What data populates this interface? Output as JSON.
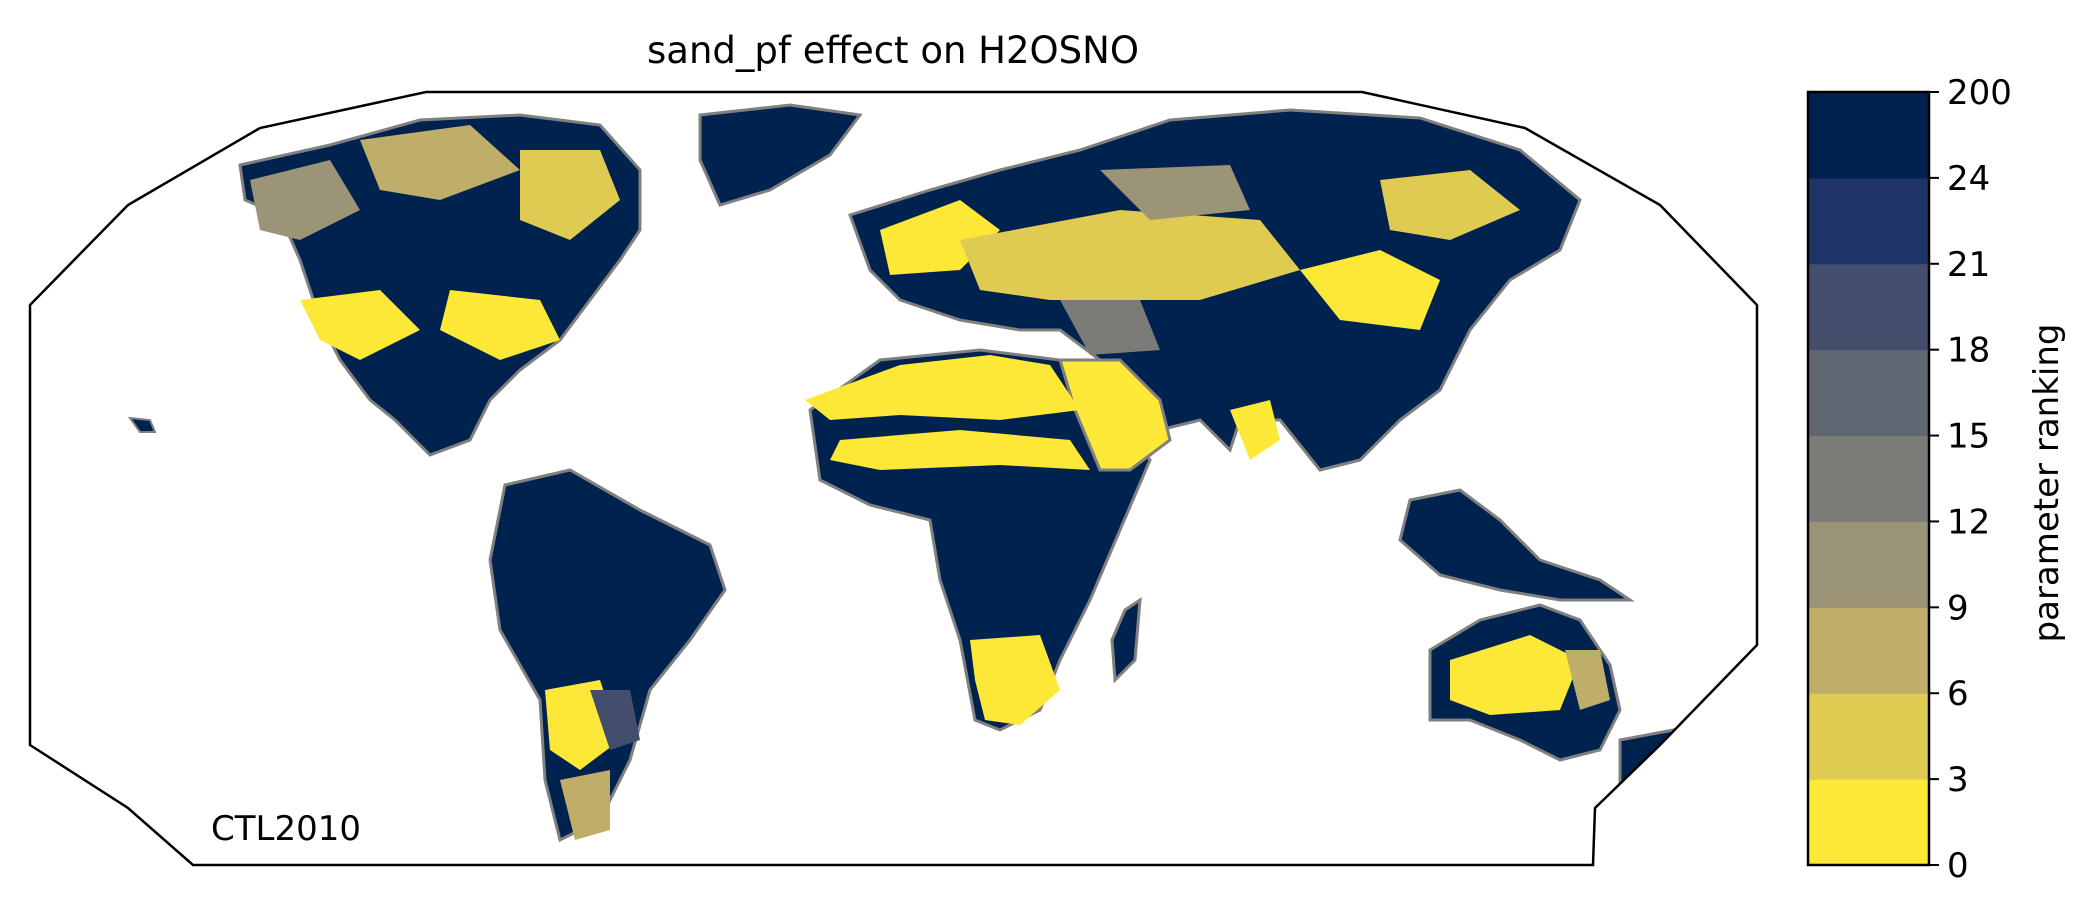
{
  "title": "sand_pf effect on H2OSNO",
  "run_label": "CTL2010",
  "colorbar": {
    "label": "parameter ranking",
    "bins": [
      {
        "from": 0,
        "to": 3,
        "color": "#fde838"
      },
      {
        "from": 3,
        "to": 6,
        "color": "#dfca52"
      },
      {
        "from": 6,
        "to": 9,
        "color": "#bfae6a"
      },
      {
        "from": 9,
        "to": 12,
        "color": "#9c9477"
      },
      {
        "from": 12,
        "to": 15,
        "color": "#7b7b78"
      },
      {
        "from": 15,
        "to": 18,
        "color": "#616673"
      },
      {
        "from": 18,
        "to": 21,
        "color": "#434e6c"
      },
      {
        "from": 21,
        "to": 24,
        "color": "#1e3469"
      },
      {
        "from": 24,
        "to": 200,
        "color": "#00224e"
      }
    ],
    "tick_labels": [
      "0",
      "3",
      "6",
      "9",
      "12",
      "15",
      "18",
      "21",
      "24",
      "200"
    ]
  },
  "map": {
    "projection": "Robinson",
    "coastline_color": "#808080",
    "ocean_color": "#ffffff",
    "dominant_color": "#00224e",
    "secondary_colors": [
      "#fde838",
      "#dfca52",
      "#bfae6a",
      "#9c9477",
      "#7b7b78",
      "#434e6c"
    ]
  }
}
